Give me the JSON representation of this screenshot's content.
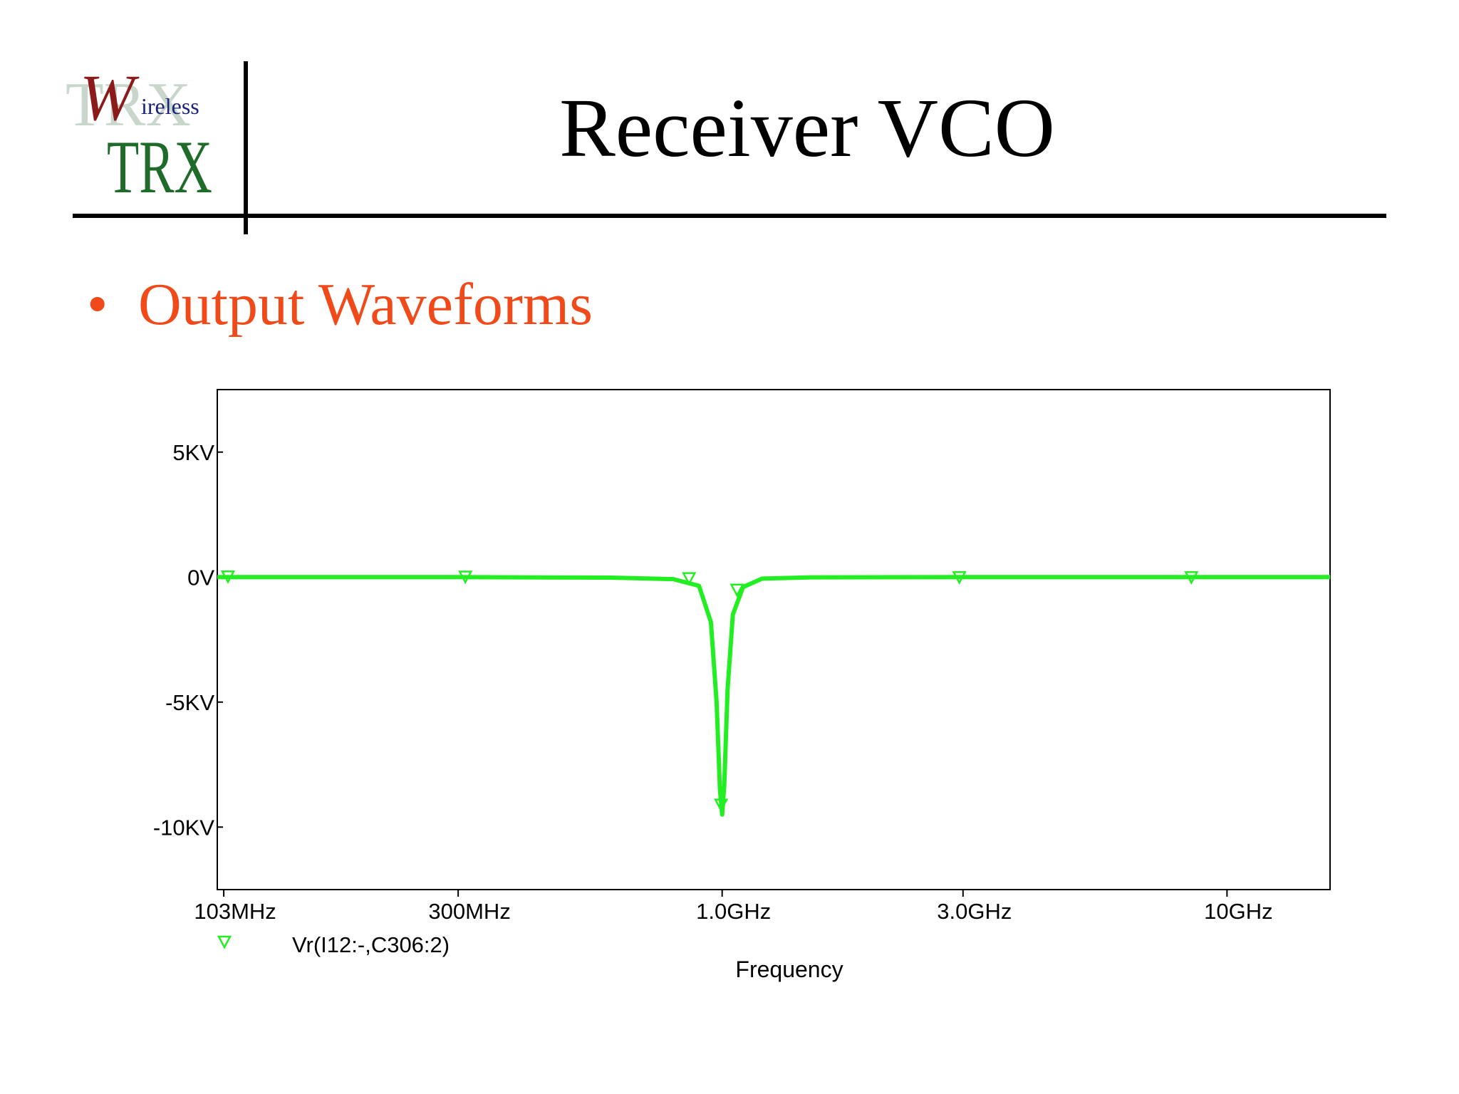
{
  "slide": {
    "title": "Receiver VCO",
    "bullet": "Output Waveforms",
    "logo": {
      "big_letter": "W",
      "small_text": "ireless",
      "main_text": "TRX",
      "shadow_text": "TRX"
    }
  },
  "colors": {
    "trace": "#22ee22",
    "bullet": "#f04a1a",
    "axis": "#000000",
    "logo_red": "#8b1a1a",
    "logo_navy": "#1a237e",
    "logo_green": "#1f6b2a",
    "logo_shadow": "#c9d6cc"
  },
  "chart_data": {
    "type": "line",
    "x_scale": "log",
    "xlim_hz": [
      100000000,
      16000000000
    ],
    "ylim_v": [
      -12500,
      7500
    ],
    "x_ticks": [
      {
        "value_hz": 103000000,
        "label": "103MHz"
      },
      {
        "value_hz": 300000000,
        "label": "300MHz"
      },
      {
        "value_hz": 1000000000,
        "label": "1.0GHz"
      },
      {
        "value_hz": 3000000000,
        "label": "3.0GHz"
      },
      {
        "value_hz": 10000000000,
        "label": "10GHz"
      }
    ],
    "y_ticks": [
      {
        "value_v": 5000,
        "label": "5KV"
      },
      {
        "value_v": 0,
        "label": "0V"
      },
      {
        "value_v": -5000,
        "label": "-5KV"
      },
      {
        "value_v": -10000,
        "label": "-10KV"
      }
    ],
    "xlabel": "Frequency",
    "ylabel": "",
    "grid": false,
    "legend_position": "bottom-left",
    "series": [
      {
        "name": "Vr(I12:-,C306:2)",
        "marker": "down-triangle",
        "x": [
          100000000,
          300000000,
          600000000,
          800000000,
          900000000,
          950000000,
          975000000,
          990000000,
          1000000000,
          1010000000,
          1025000000,
          1050000000,
          1100000000,
          1200000000,
          1500000000,
          3000000000,
          16000000000
        ],
        "y": [
          0,
          0,
          -20,
          -80,
          -350,
          -1800,
          -5000,
          -8500,
          -9500,
          -8300,
          -4500,
          -1500,
          -400,
          -60,
          -10,
          0,
          0
        ],
        "marker_x": [
          105000000,
          310000000,
          860000000,
          995000000,
          1070000000,
          2950000000,
          8500000000
        ],
        "marker_y": [
          30,
          20,
          -40,
          -9100,
          -500,
          0,
          0
        ]
      }
    ]
  }
}
